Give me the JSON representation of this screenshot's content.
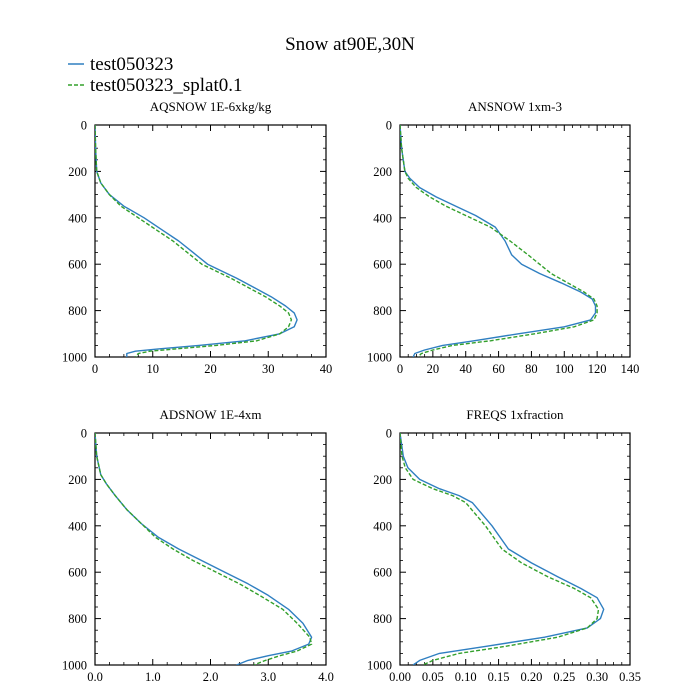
{
  "title": "Snow at90E,30N",
  "legend": [
    {
      "label": "test050323",
      "color": "#2f7fc1",
      "dash": "solid"
    },
    {
      "label": "test050323_splat0.1",
      "color": "#33a02c",
      "dash": "dashed"
    }
  ],
  "chart_data": [
    {
      "type": "line",
      "title": "AQSNOW  1E-6xkg/kg",
      "xlim": [
        0,
        40
      ],
      "xticks": [
        0,
        10,
        20,
        30,
        40
      ],
      "xtick_labels": [
        "0",
        "10",
        "20",
        "30",
        "40"
      ],
      "ylim": [
        1000,
        0
      ],
      "yticks": [
        0,
        200,
        400,
        600,
        800,
        1000
      ],
      "ytick_labels": [
        "0",
        "200",
        "400",
        "600",
        "800",
        "1000"
      ],
      "series": [
        {
          "name": "test050323",
          "color": "#2f7fc1",
          "dash": "solid",
          "x": [
            0,
            0.1,
            0.3,
            1,
            2.5,
            5,
            8.5,
            11.5,
            14.5,
            17,
            19.5,
            22,
            24.5,
            27.5,
            30.5,
            33,
            34.5,
            35,
            34.5,
            32,
            26,
            18,
            11,
            7,
            5.5,
            5.5
          ],
          "y": [
            0,
            100,
            200,
            250,
            300,
            350,
            400,
            450,
            500,
            550,
            600,
            630,
            660,
            700,
            740,
            780,
            810,
            840,
            870,
            900,
            930,
            950,
            965,
            975,
            985,
            1000
          ]
        },
        {
          "name": "test050323_splat0.1",
          "color": "#33a02c",
          "dash": "dashed",
          "x": [
            0,
            0.1,
            0.3,
            1,
            2.5,
            4.5,
            7.5,
            10.5,
            13.5,
            16,
            18.5,
            21,
            23.5,
            26.5,
            29.5,
            32,
            33.5,
            34,
            33.5,
            32,
            28,
            21,
            14,
            9.5,
            7.5,
            7
          ],
          "y": [
            0,
            100,
            200,
            250,
            300,
            350,
            400,
            450,
            500,
            550,
            600,
            630,
            660,
            700,
            740,
            780,
            810,
            840,
            870,
            900,
            930,
            950,
            965,
            975,
            985,
            1000
          ]
        }
      ]
    },
    {
      "type": "line",
      "title": "ANSNOW  1xm-3",
      "xlim": [
        0,
        140
      ],
      "xticks": [
        0,
        20,
        40,
        60,
        80,
        100,
        120,
        140
      ],
      "xtick_labels": [
        "0",
        "20",
        "40",
        "60",
        "80",
        "100",
        "120",
        "140"
      ],
      "ylim": [
        1000,
        0
      ],
      "yticks": [
        0,
        200,
        400,
        600,
        800,
        1000
      ],
      "ytick_labels": [
        "0",
        "200",
        "400",
        "600",
        "800",
        "1000"
      ],
      "series": [
        {
          "name": "test050323",
          "color": "#2f7fc1",
          "dash": "solid",
          "x": [
            0,
            1,
            3,
            6,
            12,
            22,
            34,
            46,
            58,
            64,
            68,
            74,
            85,
            98,
            110,
            117,
            119,
            119,
            116,
            100,
            72,
            45,
            26,
            15,
            9,
            8
          ],
          "y": [
            0,
            100,
            200,
            230,
            270,
            310,
            350,
            390,
            440,
            500,
            560,
            600,
            640,
            680,
            720,
            750,
            780,
            810,
            840,
            870,
            900,
            930,
            950,
            970,
            985,
            1000
          ]
        },
        {
          "name": "test050323_splat0.1",
          "color": "#33a02c",
          "dash": "dashed",
          "x": [
            0,
            1,
            3,
            5,
            10,
            18,
            28,
            40,
            55,
            67,
            78,
            85,
            92,
            102,
            112,
            118,
            120,
            120,
            118,
            106,
            82,
            55,
            32,
            20,
            13,
            11
          ],
          "y": [
            0,
            100,
            200,
            230,
            270,
            310,
            350,
            390,
            440,
            500,
            560,
            600,
            640,
            680,
            720,
            750,
            780,
            810,
            840,
            870,
            900,
            930,
            950,
            970,
            985,
            1000
          ]
        }
      ]
    },
    {
      "type": "line",
      "title": "ADSNOW  1E-4xm",
      "xlim": [
        0,
        4.0
      ],
      "xticks": [
        0,
        1,
        2,
        3,
        4
      ],
      "xtick_labels": [
        "0.0",
        "1.0",
        "2.0",
        "3.0",
        "4.0"
      ],
      "ylim": [
        1000,
        0
      ],
      "yticks": [
        0,
        200,
        400,
        600,
        800,
        1000
      ],
      "ytick_labels": [
        "0",
        "200",
        "400",
        "600",
        "800",
        "1000"
      ],
      "series": [
        {
          "name": "test050323",
          "color": "#2f7fc1",
          "dash": "solid",
          "x": [
            0,
            0.03,
            0.1,
            0.2,
            0.35,
            0.55,
            0.8,
            1.1,
            1.45,
            1.85,
            2.25,
            2.65,
            3.0,
            3.35,
            3.6,
            3.75,
            3.7,
            3.4,
            3.0,
            2.65,
            2.45
          ],
          "y": [
            0,
            100,
            180,
            220,
            270,
            330,
            390,
            450,
            500,
            550,
            600,
            650,
            700,
            760,
            820,
            880,
            910,
            940,
            960,
            980,
            1000
          ]
        },
        {
          "name": "test050323_splat0.1",
          "color": "#33a02c",
          "dash": "dashed",
          "x": [
            0,
            0.03,
            0.1,
            0.2,
            0.35,
            0.55,
            0.8,
            1.05,
            1.35,
            1.7,
            2.1,
            2.5,
            2.85,
            3.25,
            3.5,
            3.72,
            3.75,
            3.5,
            3.2,
            2.95,
            2.75
          ],
          "y": [
            0,
            100,
            180,
            220,
            270,
            330,
            390,
            450,
            500,
            550,
            600,
            650,
            700,
            760,
            820,
            880,
            910,
            940,
            960,
            980,
            1000
          ]
        }
      ]
    },
    {
      "type": "line",
      "title": "FREQS  1xfraction",
      "xlim": [
        0,
        0.35
      ],
      "xticks": [
        0,
        0.05,
        0.1,
        0.15,
        0.2,
        0.25,
        0.3,
        0.35
      ],
      "xtick_labels": [
        "0.00",
        "0.05",
        "0.10",
        "0.15",
        "0.20",
        "0.25",
        "0.30",
        "0.35"
      ],
      "ylim": [
        1000,
        0
      ],
      "yticks": [
        0,
        200,
        400,
        600,
        800,
        1000
      ],
      "ytick_labels": [
        "0",
        "200",
        "400",
        "600",
        "800",
        "1000"
      ],
      "series": [
        {
          "name": "test050323",
          "color": "#2f7fc1",
          "dash": "solid",
          "x": [
            0,
            0.005,
            0.012,
            0.03,
            0.06,
            0.09,
            0.11,
            0.14,
            0.165,
            0.2,
            0.24,
            0.275,
            0.3,
            0.31,
            0.305,
            0.285,
            0.22,
            0.13,
            0.06,
            0.03,
            0.02
          ],
          "y": [
            0,
            100,
            150,
            200,
            240,
            270,
            300,
            400,
            500,
            560,
            620,
            670,
            710,
            760,
            800,
            840,
            880,
            920,
            950,
            980,
            1000
          ]
        },
        {
          "name": "test050323_splat0.1",
          "color": "#33a02c",
          "dash": "dashed",
          "x": [
            0,
            0.003,
            0.008,
            0.02,
            0.05,
            0.08,
            0.1,
            0.13,
            0.155,
            0.185,
            0.225,
            0.265,
            0.29,
            0.302,
            0.3,
            0.285,
            0.24,
            0.16,
            0.09,
            0.05,
            0.035
          ],
          "y": [
            0,
            100,
            150,
            200,
            240,
            270,
            300,
            400,
            500,
            560,
            620,
            670,
            710,
            760,
            800,
            840,
            880,
            920,
            950,
            980,
            1000
          ]
        }
      ]
    }
  ]
}
